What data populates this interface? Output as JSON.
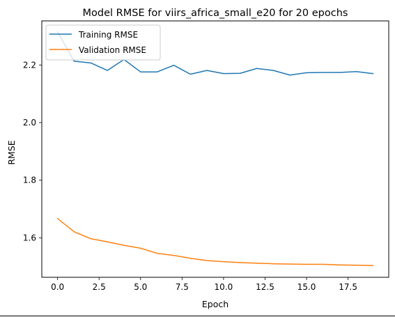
{
  "chart_data": {
    "type": "line",
    "title": "Model RMSE for viirs_africa_small_e20 for 20 epochs",
    "xlabel": "Epoch",
    "ylabel": "RMSE",
    "xlim": [
      -0.95,
      19.95
    ],
    "ylim": [
      1.463,
      2.353
    ],
    "xticks": [
      0.0,
      2.5,
      5.0,
      7.5,
      10.0,
      12.5,
      15.0,
      17.5
    ],
    "xtick_labels": [
      "0.0",
      "2.5",
      "5.0",
      "7.5",
      "10.0",
      "12.5",
      "15.0",
      "17.5"
    ],
    "yticks": [
      1.6,
      1.8,
      2.0,
      2.2
    ],
    "ytick_labels": [
      "1.6",
      "1.8",
      "2.0",
      "2.2"
    ],
    "grid": false,
    "legend_position": "upper-left",
    "x": [
      0,
      1,
      2,
      3,
      4,
      5,
      6,
      7,
      8,
      9,
      10,
      11,
      12,
      13,
      14,
      15,
      16,
      17,
      18,
      19
    ],
    "series": [
      {
        "name": "Training RMSE",
        "color": "#1f77b4",
        "values": [
          2.315,
          2.213,
          2.207,
          2.181,
          2.219,
          2.176,
          2.176,
          2.199,
          2.168,
          2.181,
          2.17,
          2.171,
          2.188,
          2.181,
          2.165,
          2.173,
          2.174,
          2.174,
          2.177,
          2.17
        ]
      },
      {
        "name": "Validation RMSE",
        "color": "#ff7f0e",
        "values": [
          1.667,
          1.621,
          1.597,
          1.586,
          1.574,
          1.564,
          1.546,
          1.539,
          1.529,
          1.521,
          1.517,
          1.514,
          1.512,
          1.51,
          1.509,
          1.508,
          1.508,
          1.506,
          1.505,
          1.504
        ]
      }
    ]
  }
}
